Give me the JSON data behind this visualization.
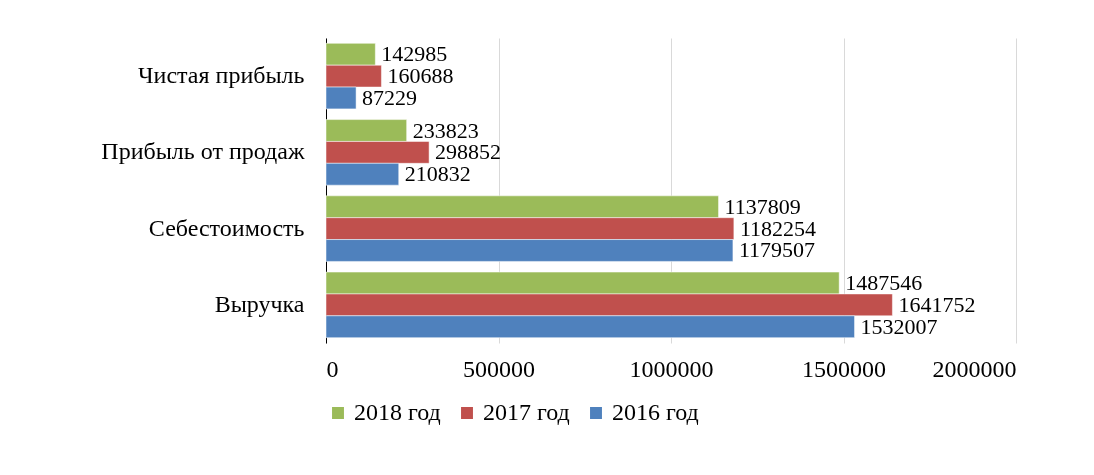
{
  "chart_data": {
    "type": "bar",
    "orientation": "horizontal",
    "categories": [
      "Чистая прибыль",
      "Прибыль от продаж",
      "Себестоимость",
      "Выручка"
    ],
    "series": [
      {
        "name": "2018 год",
        "color": "#9bbb59",
        "values": [
          142985,
          233823,
          1137809,
          1487546
        ]
      },
      {
        "name": "2017 год",
        "color": "#c0504d",
        "values": [
          160688,
          298852,
          1182254,
          1641752
        ]
      },
      {
        "name": "2016 год",
        "color": "#4f81bd",
        "values": [
          87229,
          210832,
          1179507,
          1532007
        ]
      }
    ],
    "xlim": [
      0,
      2000000
    ],
    "xticks": [
      0,
      500000,
      1000000,
      1500000,
      2000000
    ],
    "grid": "x",
    "legend": "bottom",
    "data_labels": true
  }
}
